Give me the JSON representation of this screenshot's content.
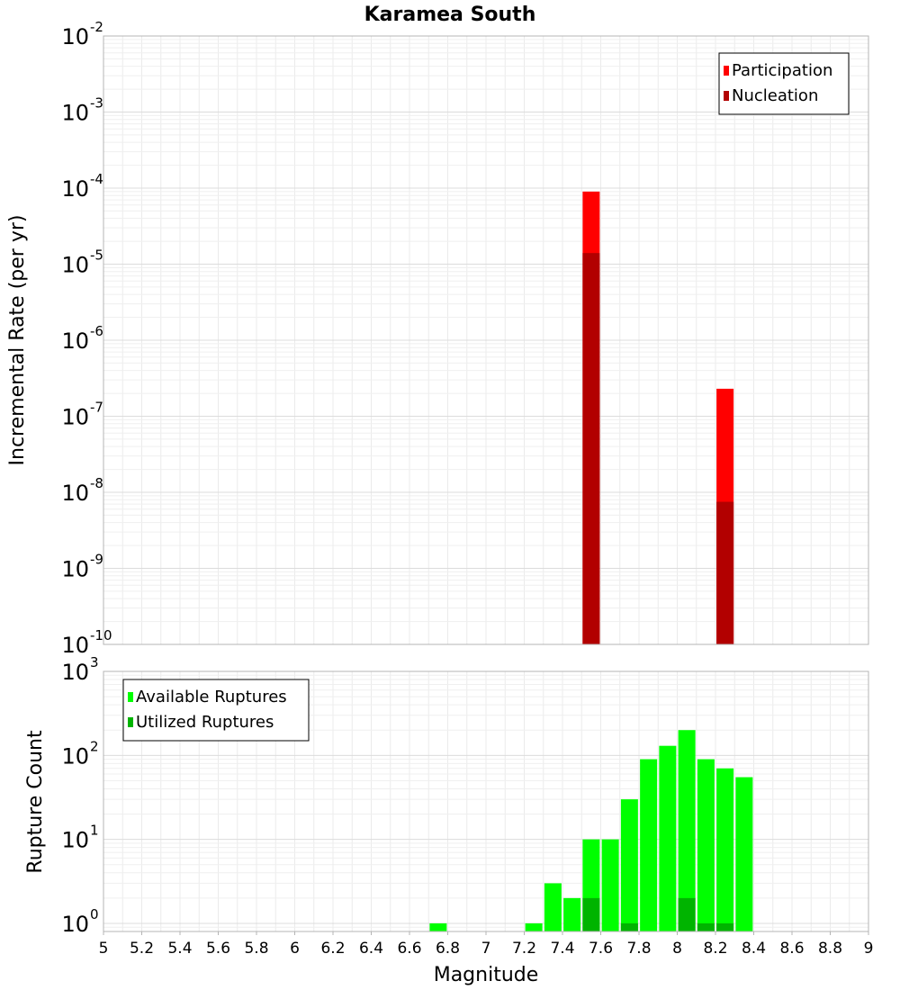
{
  "chart_data": [
    {
      "type": "bar",
      "title": "Karamea South",
      "xlabel": "",
      "ylabel": "Incremental Rate (per yr)",
      "yscale": "log",
      "ylim": [
        1e-10,
        0.01
      ],
      "xlim": [
        5,
        9
      ],
      "grid": true,
      "legend_position": "top-right",
      "y_ticks": [
        {
          "base": "10",
          "exp": "-10",
          "value": 1e-10
        },
        {
          "base": "10",
          "exp": "-9",
          "value": 1e-09
        },
        {
          "base": "10",
          "exp": "-8",
          "value": 1e-08
        },
        {
          "base": "10",
          "exp": "-7",
          "value": 1e-07
        },
        {
          "base": "10",
          "exp": "-6",
          "value": 1e-06
        },
        {
          "base": "10",
          "exp": "-5",
          "value": 1e-05
        },
        {
          "base": "10",
          "exp": "-4",
          "value": 0.0001
        },
        {
          "base": "10",
          "exp": "-3",
          "value": 0.001
        },
        {
          "base": "10",
          "exp": "-2",
          "value": 0.01
        }
      ],
      "series": [
        {
          "name": "Participation",
          "color": "#ff0000",
          "x": [
            7.55,
            8.25
          ],
          "values": [
            9e-05,
            2.3e-07
          ]
        },
        {
          "name": "Nucleation",
          "color": "#b20000",
          "x": [
            7.55,
            8.25
          ],
          "values": [
            1.4e-05,
            7.5e-09
          ]
        }
      ]
    },
    {
      "type": "bar",
      "title": "",
      "xlabel": "Magnitude",
      "ylabel": "Rupture Count",
      "yscale": "log",
      "ylim": [
        0.8,
        1000
      ],
      "xlim": [
        5,
        9
      ],
      "grid": true,
      "legend_position": "top-left",
      "x_ticks": [
        "5",
        "5.2",
        "5.4",
        "5.6",
        "5.8",
        "6",
        "6.2",
        "6.4",
        "6.6",
        "6.8",
        "7",
        "7.2",
        "7.4",
        "7.6",
        "7.8",
        "8",
        "8.2",
        "8.4",
        "8.6",
        "8.8",
        "9"
      ],
      "y_ticks": [
        {
          "base": "10",
          "exp": "0",
          "value": 1
        },
        {
          "base": "10",
          "exp": "1",
          "value": 10
        },
        {
          "base": "10",
          "exp": "2",
          "value": 100
        },
        {
          "base": "10",
          "exp": "3",
          "value": 1000
        }
      ],
      "series": [
        {
          "name": "Available Ruptures",
          "color": "#00ff00",
          "x": [
            6.75,
            7.25,
            7.35,
            7.45,
            7.55,
            7.65,
            7.75,
            7.85,
            7.95,
            8.05,
            8.15,
            8.25,
            8.35
          ],
          "values": [
            1,
            1,
            3,
            2,
            10,
            10,
            30,
            90,
            130,
            200,
            90,
            70,
            55
          ]
        },
        {
          "name": "Utilized Ruptures",
          "color": "#00b400",
          "x": [
            7.55,
            7.75,
            8.05,
            8.15,
            8.25
          ],
          "values": [
            2,
            1,
            2,
            1,
            1
          ]
        }
      ]
    }
  ]
}
